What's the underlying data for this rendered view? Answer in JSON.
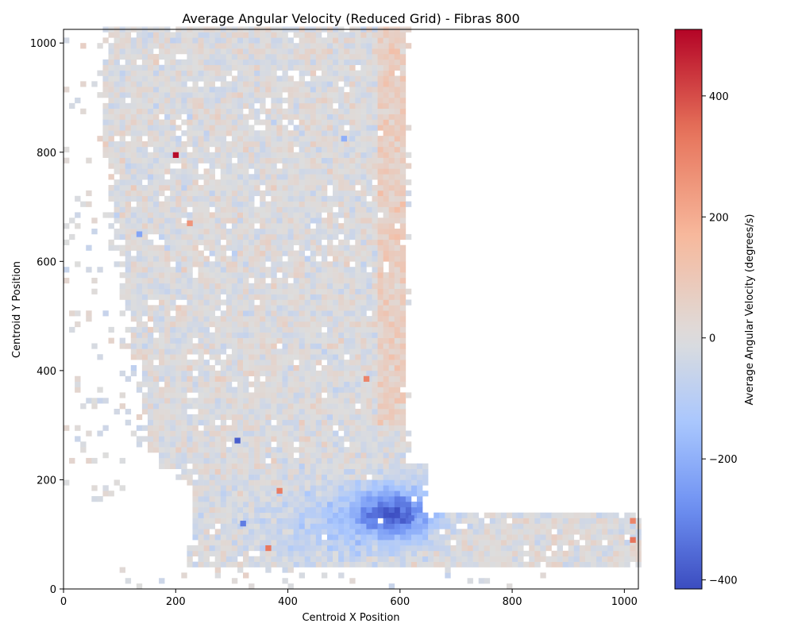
{
  "chart_data": {
    "type": "heatmap",
    "title": "Average Angular Velocity (Reduced Grid) - Fibras 800",
    "xlabel": "Centroid X Position",
    "ylabel": "Centroid Y Position",
    "xlim": [
      0,
      1025
    ],
    "ylim": [
      0,
      1025
    ],
    "x_ticks": [
      0,
      200,
      400,
      600,
      800,
      1000
    ],
    "y_ticks": [
      0,
      200,
      400,
      600,
      800,
      1000
    ],
    "grid": false,
    "cell_size": 10,
    "colormap": "coolwarm",
    "colorbar": {
      "label": "Average Angular Velocity (degrees/s)",
      "vmin": -415,
      "vmax": 510,
      "ticks": [
        -400,
        -200,
        0,
        200,
        400
      ],
      "tick_labels": [
        "−400",
        "−200",
        "0",
        "200",
        "400"
      ],
      "stops": [
        "#3b4cc0",
        "#6f92f3",
        "#aac7fd",
        "#dddddd",
        "#f7b89c",
        "#e7745b",
        "#b40426"
      ]
    },
    "regions": [
      {
        "name": "vertical band",
        "x_range": [
          60,
          620
        ],
        "y_range": [
          200,
          1025
        ],
        "mean_value": 0
      },
      {
        "name": "horizontal band",
        "x_range": [
          280,
          1025
        ],
        "y_range": [
          40,
          140
        ],
        "mean_value": 0
      },
      {
        "name": "corner vortex",
        "x_range": [
          420,
          680
        ],
        "y_range": [
          80,
          220
        ],
        "mean_value": -230
      }
    ],
    "notable_cells": [
      {
        "x": 200,
        "y": 795,
        "value": 500
      },
      {
        "x": 310,
        "y": 272,
        "value": -380
      },
      {
        "x": 580,
        "y": 125,
        "value": -350
      },
      {
        "x": 620,
        "y": 130,
        "value": -340
      },
      {
        "x": 385,
        "y": 180,
        "value": 320
      },
      {
        "x": 365,
        "y": 75,
        "value": 330
      },
      {
        "x": 1015,
        "y": 90,
        "value": 340
      },
      {
        "x": 1015,
        "y": 125,
        "value": 300
      },
      {
        "x": 540,
        "y": 385,
        "value": 300
      },
      {
        "x": 320,
        "y": 120,
        "value": -320
      },
      {
        "x": 225,
        "y": 670,
        "value": 260
      },
      {
        "x": 135,
        "y": 650,
        "value": -230
      },
      {
        "x": 500,
        "y": 825,
        "value": -200
      }
    ]
  }
}
